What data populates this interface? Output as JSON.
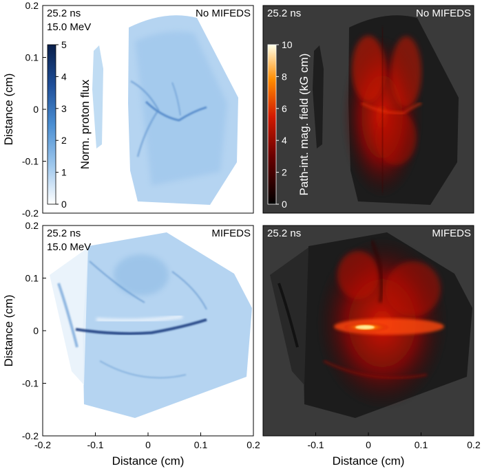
{
  "chart_data": [
    {
      "type": "heatmap",
      "panel": "top-left",
      "corner_text_left": [
        "25.2 ns",
        "15.0 MeV"
      ],
      "corner_text_right": "No MIFEDS",
      "ylabel": "Distance (cm)",
      "xlim": [
        -0.2,
        0.2
      ],
      "ylim": [
        -0.2,
        0.2
      ],
      "yticks": [
        "0.2",
        "0.1",
        "0",
        "-0.1",
        "-0.2"
      ],
      "xticks": [],
      "colorbar": {
        "label": "Norm. proton flux",
        "ticks": [
          "5",
          "4",
          "3",
          "2",
          "1",
          "0"
        ],
        "range": [
          0,
          5
        ],
        "colormap": "white-to-blue",
        "colors": [
          "#ffffff",
          "#9cc6ec",
          "#4a8ed2",
          "#1e4e98",
          "#0a1f4a"
        ]
      },
      "background": "#ffffff"
    },
    {
      "type": "heatmap",
      "panel": "top-right",
      "corner_text_left": [
        "25.2 ns"
      ],
      "corner_text_right": "No MIFEDS",
      "xlim": [
        -0.2,
        0.2
      ],
      "ylim": [
        -0.2,
        0.2
      ],
      "colorbar": {
        "label": "Path-int. mag. field (kG cm)",
        "ticks": [
          "10",
          "8",
          "6",
          "4",
          "2",
          "0"
        ],
        "range": [
          0,
          10
        ],
        "colormap": "hot",
        "colors": [
          "#000000",
          "#6a0000",
          "#d21a00",
          "#ff8c00",
          "#ffff9a"
        ]
      },
      "background": "#3a3a3a"
    },
    {
      "type": "heatmap",
      "panel": "bottom-left",
      "corner_text_left": [
        "25.2 ns",
        "15.0 MeV"
      ],
      "corner_text_right": "MIFEDS",
      "xlabel": "Distance (cm)",
      "ylabel": "Distance (cm)",
      "xlim": [
        -0.2,
        0.2
      ],
      "ylim": [
        -0.2,
        0.2
      ],
      "xticks": [
        "-0.2",
        "-0.1",
        "0",
        "0.1",
        "0.2"
      ],
      "yticks": [
        "0.2",
        "0.1",
        "0",
        "-0.1",
        "-0.2"
      ],
      "background": "#ffffff"
    },
    {
      "type": "heatmap",
      "panel": "bottom-right",
      "corner_text_left": [
        "25.2 ns"
      ],
      "corner_text_right": "MIFEDS",
      "xlabel": "Distance (cm)",
      "xlim": [
        -0.2,
        0.2
      ],
      "ylim": [
        -0.2,
        0.2
      ],
      "xticks": [
        "-0.1",
        "0",
        "0.1",
        "0.2"
      ],
      "background": "#3a3a3a"
    }
  ]
}
